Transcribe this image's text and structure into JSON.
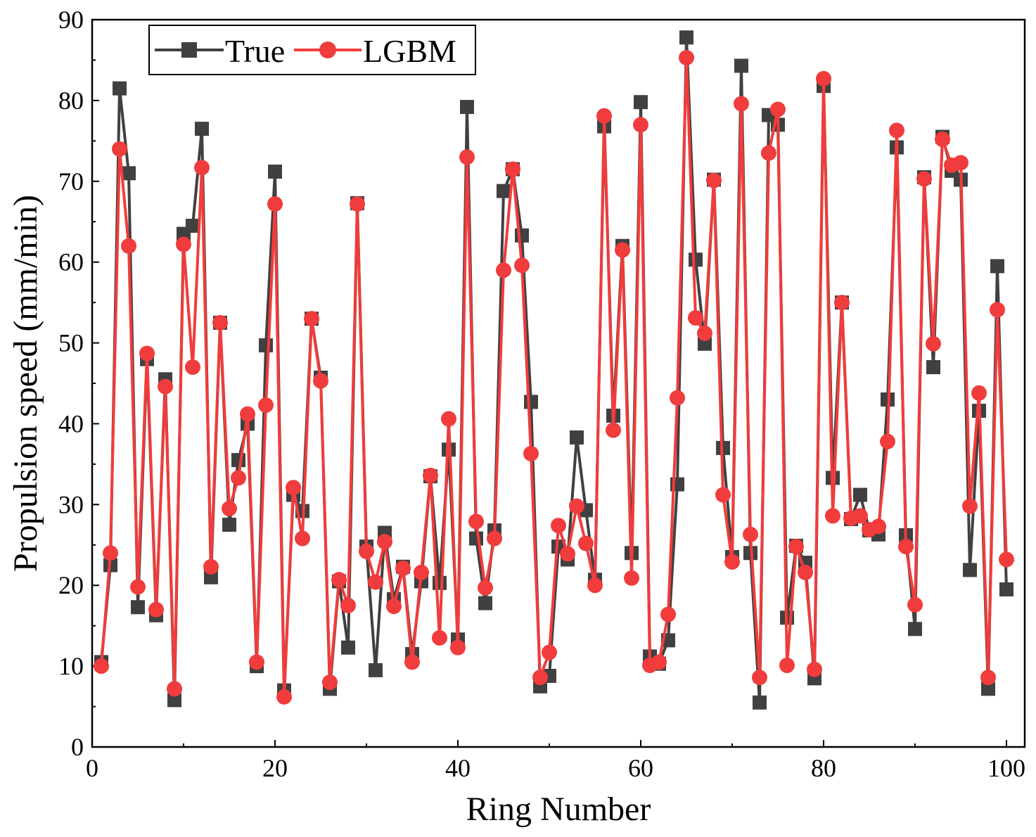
{
  "chart_data": {
    "type": "line",
    "title": "",
    "xlabel": "Ring Number",
    "ylabel": "Propulsion speed (mm/min)",
    "xlim": [
      0,
      102
    ],
    "ylim": [
      0,
      90
    ],
    "xticks": [
      0,
      20,
      40,
      60,
      80,
      100
    ],
    "yticks": [
      0,
      10,
      20,
      30,
      40,
      50,
      60,
      70,
      80,
      90
    ],
    "grid": false,
    "legend_position": "top-left",
    "series": [
      {
        "name": "True",
        "color": "#404040",
        "marker": "square",
        "x": [
          1,
          2,
          3,
          4,
          5,
          6,
          7,
          8,
          9,
          10,
          11,
          12,
          13,
          14,
          15,
          16,
          17,
          18,
          19,
          20,
          21,
          22,
          23,
          24,
          25,
          26,
          27,
          28,
          29,
          30,
          31,
          32,
          33,
          34,
          35,
          36,
          37,
          38,
          39,
          40,
          41,
          42,
          43,
          44,
          45,
          46,
          47,
          48,
          49,
          50,
          51,
          52,
          53,
          54,
          55,
          56,
          57,
          58,
          59,
          60,
          61,
          62,
          63,
          64,
          65,
          66,
          67,
          68,
          69,
          70,
          71,
          72,
          73,
          74,
          75,
          76,
          77,
          78,
          79,
          80,
          81,
          82,
          83,
          84,
          85,
          86,
          87,
          88,
          89,
          90,
          91,
          92,
          93,
          94,
          95,
          96,
          97,
          98,
          99,
          100
        ],
        "values": [
          10.5,
          22.5,
          81.5,
          71,
          17.3,
          48,
          16.3,
          45.5,
          5.8,
          63.5,
          64.5,
          76.5,
          21,
          52.5,
          27.5,
          35.5,
          40,
          10,
          49.7,
          71.2,
          7,
          31.2,
          29.2,
          53,
          45.7,
          7.2,
          20.5,
          12.3,
          67.3,
          24.8,
          9.5,
          26.5,
          18.3,
          22.3,
          11.5,
          20.5,
          33.5,
          20.3,
          36.8,
          13.3,
          79.2,
          25.8,
          17.8,
          26.8,
          68.8,
          71.5,
          63.3,
          42.7,
          7.5,
          8.8,
          24.8,
          23.2,
          38.3,
          29.3,
          20.7,
          76.8,
          41,
          62,
          24,
          79.8,
          11.2,
          10.3,
          13.2,
          32.5,
          87.8,
          60.3,
          49.9,
          70.2,
          37,
          23.5,
          84.3,
          24,
          5.5,
          78.2,
          77,
          16,
          24.9,
          22.8,
          8.5,
          81.8,
          33.3,
          55,
          28.2,
          31.2,
          26.8,
          26.3,
          43,
          74.2,
          26.2,
          14.6,
          70.5,
          47,
          75.5,
          71.3,
          70.2,
          21.9,
          41.6,
          7.2,
          59.5,
          19.5
        ]
      },
      {
        "name": "LGBM",
        "color": "#f03c3c",
        "marker": "circle",
        "x": [
          1,
          2,
          3,
          4,
          5,
          6,
          7,
          8,
          9,
          10,
          11,
          12,
          13,
          14,
          15,
          16,
          17,
          18,
          19,
          20,
          21,
          22,
          23,
          24,
          25,
          26,
          27,
          28,
          29,
          30,
          31,
          32,
          33,
          34,
          35,
          36,
          37,
          38,
          39,
          40,
          41,
          42,
          43,
          44,
          45,
          46,
          47,
          48,
          49,
          50,
          51,
          52,
          53,
          54,
          55,
          56,
          57,
          58,
          59,
          60,
          61,
          62,
          63,
          64,
          65,
          66,
          67,
          68,
          69,
          70,
          71,
          72,
          73,
          74,
          75,
          76,
          77,
          78,
          79,
          80,
          81,
          82,
          83,
          84,
          85,
          86,
          87,
          88,
          89,
          90,
          91,
          92,
          93,
          94,
          95,
          96,
          97,
          98,
          99,
          100
        ],
        "values": [
          10,
          24,
          74,
          62,
          19.8,
          48.7,
          17,
          44.6,
          7.2,
          62.2,
          47,
          71.7,
          22.3,
          52.5,
          29.5,
          33.3,
          41.2,
          10.5,
          42.3,
          67.2,
          6.2,
          32.1,
          25.8,
          53,
          45.3,
          8,
          20.7,
          17.5,
          67.2,
          24.2,
          20.4,
          25.4,
          17.4,
          22.1,
          10.5,
          21.6,
          33.6,
          13.5,
          40.6,
          12.3,
          73,
          27.9,
          19.7,
          25.8,
          59,
          71.5,
          59.6,
          36.3,
          8.6,
          11.7,
          27.4,
          23.9,
          29.8,
          25.2,
          20,
          78.1,
          39.2,
          61.5,
          20.9,
          77,
          10.1,
          10.5,
          16.4,
          43.2,
          85.3,
          53.1,
          51.2,
          70.1,
          31.2,
          22.9,
          79.6,
          26.3,
          8.6,
          73.5,
          78.9,
          10.1,
          24.8,
          21.6,
          9.6,
          82.7,
          28.6,
          55,
          28.3,
          28.6,
          26.9,
          27.3,
          37.8,
          76.3,
          24.8,
          17.6,
          70.3,
          49.9,
          75.2,
          72,
          72.3,
          29.8,
          43.8,
          8.6,
          54.1,
          23.2
        ]
      }
    ]
  }
}
